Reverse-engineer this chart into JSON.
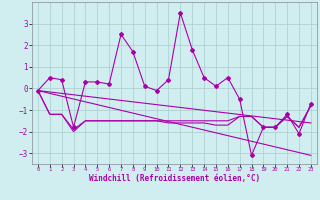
{
  "background_color": "#d0eef0",
  "grid_color": "#aacccc",
  "line_color": "#aa00aa",
  "xlabel": "Windchill (Refroidissement éolien,°C)",
  "x_hours": [
    0,
    1,
    2,
    3,
    4,
    5,
    6,
    7,
    8,
    9,
    10,
    11,
    12,
    13,
    14,
    15,
    16,
    17,
    18,
    19,
    20,
    21,
    22,
    23
  ],
  "series1": [
    -0.1,
    0.5,
    0.4,
    -1.8,
    0.3,
    0.3,
    0.2,
    2.5,
    1.7,
    0.1,
    -0.1,
    0.4,
    3.5,
    1.8,
    0.5,
    0.1,
    0.5,
    -0.5,
    -3.1,
    -1.8,
    -1.8,
    -1.2,
    -2.1,
    -0.7
  ],
  "series2": [
    -0.1,
    -1.2,
    -1.2,
    -1.9,
    -1.5,
    -1.5,
    -1.5,
    -1.5,
    -1.5,
    -1.5,
    -1.5,
    -1.5,
    -1.5,
    -1.5,
    -1.5,
    -1.5,
    -1.5,
    -1.3,
    -1.3,
    -1.8,
    -1.8,
    -1.3,
    -1.8,
    -0.8
  ],
  "series3": [
    -0.1,
    -1.2,
    -1.2,
    -2.0,
    -1.5,
    -1.5,
    -1.5,
    -1.5,
    -1.5,
    -1.5,
    -1.5,
    -1.6,
    -1.6,
    -1.6,
    -1.6,
    -1.7,
    -1.7,
    -1.3,
    -1.3,
    -1.8,
    -1.8,
    -1.3,
    -1.8,
    -0.8
  ],
  "series4_x": [
    0,
    23
  ],
  "series4_y": [
    -0.1,
    -1.6
  ],
  "series5_x": [
    0,
    23
  ],
  "series5_y": [
    -0.1,
    -3.1
  ],
  "ylim": [
    -3.5,
    4.0
  ],
  "yticks": [
    -3,
    -2,
    -1,
    0,
    1,
    2,
    3
  ],
  "xlim": [
    -0.5,
    23.5
  ]
}
